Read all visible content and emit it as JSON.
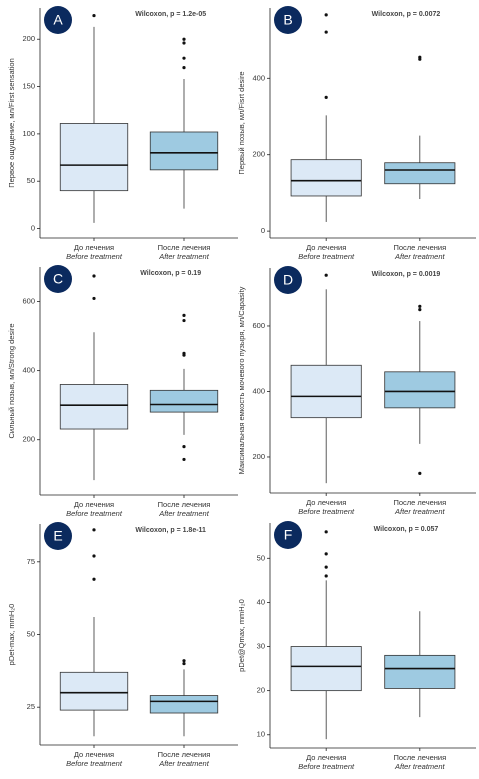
{
  "chart_data": [
    {
      "type": "box",
      "panel_label": "A",
      "annotation": "Wilcoxon, p = 1.2e-05",
      "y_label": "Первое ощущение, мл/First sensation",
      "categories": [
        "До лечения",
        "После лечения"
      ],
      "categories_en": [
        "Before treatment",
        "After treatment"
      ],
      "ylim": [
        -10,
        233
      ],
      "yticks": [
        0,
        50,
        100,
        150,
        200
      ],
      "series": [
        {
          "color": "#dce9f6",
          "whislo": 6,
          "q1": 40,
          "med": 67,
          "q3": 111,
          "whishi": 213,
          "fliers": [
            225
          ]
        },
        {
          "color": "#9ecae1",
          "whislo": 21,
          "q1": 62,
          "med": 80,
          "q3": 102,
          "whishi": 158,
          "fliers": [
            200,
            196,
            180,
            170
          ]
        }
      ]
    },
    {
      "type": "box",
      "panel_label": "B",
      "annotation": "Wilcoxon, p = 0.0072",
      "y_label": "Первый позыв, мл/Fisrt desire",
      "categories": [
        "До лечения",
        "После лечения"
      ],
      "categories_en": [
        "Before treatment",
        "After treatment"
      ],
      "ylim": [
        -18,
        584
      ],
      "yticks": [
        0,
        200,
        400
      ],
      "series": [
        {
          "color": "#dce9f6",
          "whislo": 24,
          "q1": 92,
          "med": 132,
          "q3": 187,
          "whishi": 303,
          "fliers": [
            350,
            521,
            566
          ]
        },
        {
          "color": "#9ecae1",
          "whislo": 84,
          "q1": 124,
          "med": 160,
          "q3": 179,
          "whishi": 250,
          "fliers": [
            450,
            455
          ]
        }
      ]
    },
    {
      "type": "box",
      "panel_label": "C",
      "annotation": "Wilcoxon, p = 0.19",
      "y_label": "Сильный позыв, мл/Strong desire",
      "categories": [
        "До лечения",
        "После лечения"
      ],
      "categories_en": [
        "Before treatment",
        "After treatment"
      ],
      "ylim": [
        40,
        700
      ],
      "yticks": [
        200,
        400,
        600
      ],
      "series": [
        {
          "color": "#dce9f6",
          "whislo": 83,
          "q1": 231,
          "med": 300,
          "q3": 360,
          "whishi": 511,
          "fliers": [
            609,
            674
          ]
        },
        {
          "color": "#9ecae1",
          "whislo": 214,
          "q1": 280,
          "med": 302,
          "q3": 343,
          "whishi": 405,
          "fliers": [
            180,
            143,
            445,
            450,
            545,
            560
          ]
        }
      ]
    },
    {
      "type": "box",
      "panel_label": "D",
      "annotation": "Wilcoxon, p = 0.0019",
      "y_label": "Максимальная емкость мочевого пузыря, мл/Capasity",
      "categories": [
        "До лечения",
        "После лечения"
      ],
      "categories_en": [
        "Before treatment",
        "After treatment"
      ],
      "ylim": [
        90,
        777
      ],
      "yticks": [
        200,
        400,
        600
      ],
      "series": [
        {
          "color": "#dce9f6",
          "whislo": 120,
          "q1": 320,
          "med": 385,
          "q3": 480,
          "whishi": 712,
          "fliers": [
            755
          ]
        },
        {
          "color": "#9ecae1",
          "whislo": 240,
          "q1": 350,
          "med": 400,
          "q3": 460,
          "whishi": 615,
          "fliers": [
            150,
            650,
            660
          ]
        }
      ]
    },
    {
      "type": "box",
      "panel_label": "E",
      "annotation": "Wilcoxon, p = 1.8e-11",
      "y_label": "pDet-max, mmH₂0",
      "categories": [
        "До лечения",
        "После лечения"
      ],
      "categories_en": [
        "Before treatment",
        "After treatment"
      ],
      "ylim": [
        12,
        88
      ],
      "yticks": [
        25,
        50,
        75
      ],
      "series": [
        {
          "color": "#dce9f6",
          "whislo": 15,
          "q1": 24,
          "med": 30,
          "q3": 37,
          "whishi": 56,
          "fliers": [
            69,
            77,
            86
          ]
        },
        {
          "color": "#9ecae1",
          "whislo": 15,
          "q1": 23,
          "med": 27,
          "q3": 29,
          "whishi": 38,
          "fliers": [
            40,
            41
          ]
        }
      ]
    },
    {
      "type": "box",
      "panel_label": "F",
      "annotation": "Wilcoxon, p = 0.057",
      "y_label": "pDet@Qmax, mmH₂0",
      "categories": [
        "До лечения",
        "После лечения"
      ],
      "categories_en": [
        "Before treatment",
        "After treatment"
      ],
      "ylim": [
        7,
        58
      ],
      "yticks": [
        10,
        20,
        30,
        40,
        50
      ],
      "series": [
        {
          "color": "#dce9f6",
          "whislo": 9,
          "q1": 20,
          "med": 25.5,
          "q3": 30,
          "whishi": 45,
          "fliers": [
            46,
            48,
            51,
            56
          ]
        },
        {
          "color": "#9ecae1",
          "whislo": 14,
          "q1": 20.5,
          "med": 25,
          "q3": 28,
          "whishi": 38,
          "fliers": []
        }
      ]
    }
  ]
}
